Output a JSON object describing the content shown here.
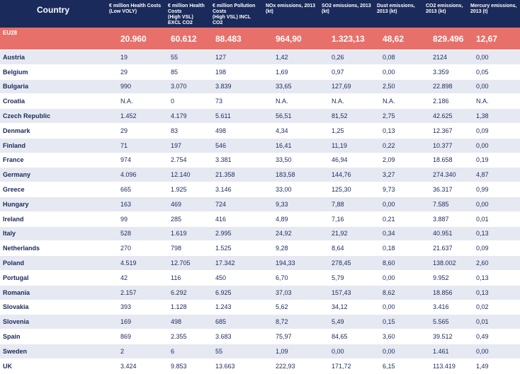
{
  "table": {
    "headers": [
      "Country",
      "€ million Health Costs (Low VOLY)",
      "€ million Health Costs\n(High VSL) EXCL CO2",
      "€ million Pollution Costs\n(High VSL) INCL CO2",
      "NOx emissions, 2013 (kt)",
      "SO2 emissions, 2013 (kt)",
      "Dust emissions, 2013 (kt)",
      "CO2 emissions, 2013 (kt)",
      "Mercury emissions, 2013 (t)"
    ],
    "total": [
      "EU28",
      "20.960",
      "60.612",
      "88.483",
      "964,90",
      "1.323,13",
      "48,62",
      "829.496",
      "12,67"
    ],
    "rows": [
      [
        "Austria",
        "19",
        "55",
        "127",
        "1,42",
        "0,26",
        "0,08",
        "2124",
        "0,00"
      ],
      [
        "Belgium",
        "29",
        "85",
        "198",
        "1,69",
        "0,97",
        "0,00",
        "3.359",
        "0,05"
      ],
      [
        "Bulgaria",
        "990",
        "3.070",
        "3.839",
        "33,65",
        "127,69",
        "2,50",
        "22.898",
        "0,00"
      ],
      [
        "Croatia",
        "N.A.",
        "0",
        "73",
        "N.A.",
        "N.A.",
        "N.A.",
        "2.186",
        "N.A."
      ],
      [
        "Czech Republic",
        "1.452",
        "4.179",
        "5.611",
        "56,51",
        "81,52",
        "2,75",
        "42.625",
        "1,38"
      ],
      [
        "Denmark",
        "29",
        "83",
        "498",
        "4,34",
        "1,25",
        "0,13",
        "12.367",
        "0,09"
      ],
      [
        "Finland",
        "71",
        "197",
        "546",
        "16,41",
        "11,19",
        "0,22",
        "10.377",
        "0,00"
      ],
      [
        "France",
        "974",
        "2.754",
        "3.381",
        "33,50",
        "46,94",
        "2,09",
        "18.658",
        "0,19"
      ],
      [
        "Germany",
        "4.096",
        "12.140",
        "21.358",
        "183,58",
        "144,76",
        "3,27",
        "274.340",
        "4,87"
      ],
      [
        "Greece",
        "665",
        "1.925",
        "3.146",
        "33,00",
        "125,30",
        "9,73",
        "36.317",
        "0,99"
      ],
      [
        "Hungary",
        "163",
        "469",
        "724",
        "9,33",
        "7,88",
        "0,00",
        "7.585",
        "0,00"
      ],
      [
        "Ireland",
        "99",
        "285",
        "416",
        "4,89",
        "7,16",
        "0,21",
        "3.887",
        "0,01"
      ],
      [
        "Italy",
        "528",
        "1.619",
        "2.995",
        "24,92",
        "21,92",
        "0,34",
        "40.951",
        "0,13"
      ],
      [
        "Netherlands",
        "270",
        "798",
        "1.525",
        "9,28",
        "8,64",
        "0,18",
        "21.637",
        "0,09"
      ],
      [
        "Poland",
        "4.519",
        "12.705",
        "17.342",
        "194,33",
        "278,45",
        "8,60",
        "138.002",
        "2,60"
      ],
      [
        "Portugal",
        "42",
        "116",
        "450",
        "6,70",
        "5,79",
        "0,00",
        "9.952",
        "0,13"
      ],
      [
        "Romania",
        "2.157",
        "6.292",
        "6.925",
        "37,03",
        "157,43",
        "8,62",
        "18.856",
        "0,13"
      ],
      [
        "Slovakia",
        "393",
        "1.128",
        "1.243",
        "5,62",
        "34,12",
        "0,00",
        "3.416",
        "0,02"
      ],
      [
        "Slovenia",
        "169",
        "498",
        "685",
        "8,72",
        "5,49",
        "0,15",
        "5.565",
        "0,01"
      ],
      [
        "Spain",
        "869",
        "2.355",
        "3.683",
        "75,97",
        "84,65",
        "3,60",
        "39.512",
        "0,49"
      ],
      [
        "Sweden",
        "2",
        "6",
        "55",
        "1,09",
        "0,00",
        "0,00",
        "1.461",
        "0,00"
      ],
      [
        "UK",
        "3.424",
        "9.853",
        "13.663",
        "222,93",
        "171,72",
        "6,15",
        "113.419",
        "1,49"
      ]
    ]
  },
  "colors": {
    "header_bg": "#1a2a5b",
    "total_bg": "#e8706a",
    "stripe_bg": "#e6e9f2",
    "text": "#1a2a5b"
  }
}
